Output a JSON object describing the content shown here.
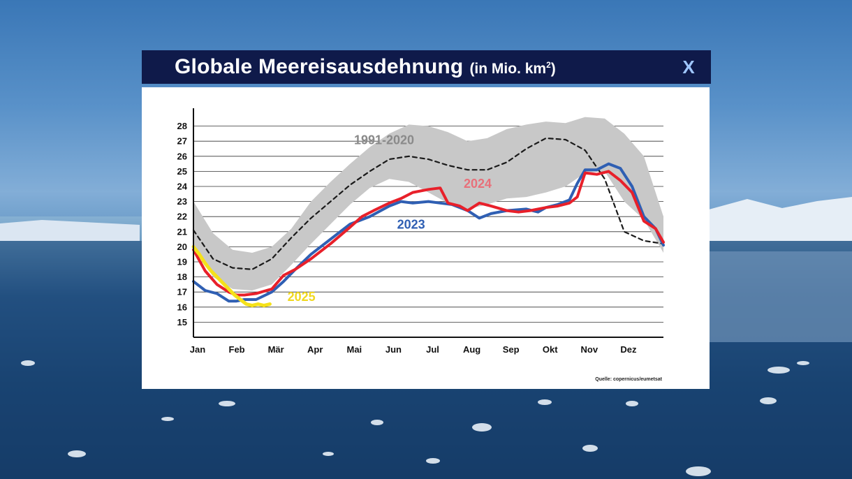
{
  "header": {
    "title": "Globale Meereisausdehnung",
    "unit_prefix": "(in Mio. km",
    "unit_sup": "2",
    "unit_suffix": ")",
    "close_label": "X"
  },
  "source": "Quelle: copernicus/eumetsat",
  "colors": {
    "header_bg": "#0f1a4a",
    "band": "#c8c8c8",
    "mean": "#1a1a1a",
    "s2023": "#2f5fb3",
    "s2024": "#e8202a",
    "s2025": "#f5e11a",
    "label2024": "#e8707a",
    "label2025": "#f0d820"
  },
  "chart_data": {
    "type": "line",
    "title": "Globale Meereisausdehnung",
    "ylabel": "",
    "xlabel": "",
    "ylim": [
      14,
      29
    ],
    "xlim": [
      0,
      12
    ],
    "yticks": [
      15,
      16,
      17,
      18,
      19,
      20,
      21,
      22,
      23,
      24,
      25,
      26,
      27,
      28
    ],
    "months": [
      "Jan",
      "Feb",
      "Mär",
      "Apr",
      "Mai",
      "Jun",
      "Jul",
      "Aug",
      "Sep",
      "Okt",
      "Nov",
      "Dez"
    ],
    "grid": true,
    "band": {
      "name": "1991-2020",
      "x": [
        0,
        0.5,
        1,
        1.5,
        2,
        2.5,
        3,
        3.5,
        4,
        4.5,
        5,
        5.5,
        6,
        6.5,
        7,
        7.5,
        8,
        8.5,
        9,
        9.5,
        10,
        10.5,
        11,
        11.5,
        12
      ],
      "upper": [
        23.0,
        20.9,
        19.8,
        19.6,
        20.0,
        21.2,
        23.0,
        24.3,
        25.5,
        26.6,
        27.5,
        28.1,
        28.0,
        27.6,
        27.0,
        27.2,
        27.8,
        28.1,
        28.3,
        28.2,
        28.6,
        28.5,
        27.5,
        26.0,
        22.0
      ],
      "lower": [
        20.2,
        18.0,
        17.2,
        17.1,
        17.5,
        18.8,
        20.2,
        21.5,
        22.8,
        23.9,
        24.5,
        24.3,
        23.6,
        22.9,
        22.5,
        22.8,
        23.2,
        23.3,
        23.6,
        24.0,
        24.9,
        25.0,
        23.0,
        21.8,
        19.6
      ]
    },
    "series": [
      {
        "name": "1991-2020",
        "style": "dashed",
        "x": [
          0,
          0.5,
          1,
          1.5,
          2,
          2.5,
          3,
          3.5,
          4,
          4.5,
          5,
          5.5,
          6,
          6.5,
          7,
          7.5,
          8,
          8.5,
          9,
          9.5,
          10,
          10.5,
          11,
          11.5,
          12
        ],
        "values": [
          21.1,
          19.2,
          18.6,
          18.5,
          19.2,
          20.6,
          21.9,
          23.0,
          24.1,
          25.0,
          25.8,
          26.0,
          25.8,
          25.4,
          25.1,
          25.1,
          25.6,
          26.5,
          27.2,
          27.1,
          26.4,
          24.5,
          21.0,
          20.4,
          20.2
        ]
      },
      {
        "name": "2023",
        "x": [
          0,
          0.3,
          0.6,
          0.9,
          1.1,
          1.3,
          1.6,
          2,
          2.3,
          2.6,
          3,
          3.5,
          4,
          4.5,
          5,
          5.3,
          5.6,
          6,
          6.3,
          6.6,
          7,
          7.3,
          7.6,
          8,
          8.5,
          8.8,
          9,
          9.3,
          9.6,
          9.8,
          10,
          10.3,
          10.6,
          10.9,
          11.2,
          11.5,
          11.8,
          12
        ],
        "values": [
          17.7,
          17.1,
          16.9,
          16.4,
          16.4,
          16.5,
          16.5,
          17.0,
          17.7,
          18.5,
          19.5,
          20.5,
          21.5,
          22.0,
          22.7,
          23.0,
          22.9,
          23.0,
          22.9,
          22.8,
          22.4,
          21.9,
          22.2,
          22.4,
          22.5,
          22.3,
          22.6,
          22.8,
          23.1,
          24.2,
          25.1,
          25.1,
          25.5,
          25.2,
          24.0,
          22.0,
          21.2,
          20.1
        ]
      },
      {
        "name": "2024",
        "x": [
          0,
          0.3,
          0.6,
          0.9,
          1.1,
          1.3,
          1.6,
          2,
          2.3,
          2.6,
          3,
          3.5,
          4,
          4.3,
          4.6,
          5,
          5.3,
          5.6,
          6,
          6.3,
          6.5,
          6.8,
          7,
          7.3,
          7.6,
          8,
          8.3,
          8.6,
          9,
          9.3,
          9.6,
          9.8,
          10,
          10.3,
          10.6,
          10.9,
          11.2,
          11.5,
          11.8,
          12
        ],
        "values": [
          19.8,
          18.4,
          17.5,
          17.0,
          16.8,
          16.8,
          16.9,
          17.2,
          18.1,
          18.5,
          19.2,
          20.2,
          21.3,
          22.0,
          22.4,
          22.9,
          23.2,
          23.6,
          23.8,
          23.9,
          22.9,
          22.7,
          22.4,
          22.9,
          22.7,
          22.4,
          22.3,
          22.4,
          22.6,
          22.7,
          22.9,
          23.3,
          24.9,
          24.8,
          25.0,
          24.4,
          23.6,
          21.7,
          21.2,
          20.3
        ]
      },
      {
        "name": "2025",
        "x": [
          0,
          0.15,
          0.3,
          0.45,
          0.6,
          0.75,
          0.9,
          1.05,
          1.2,
          1.35,
          1.5,
          1.65,
          1.8,
          1.95
        ],
        "values": [
          20.0,
          19.5,
          18.9,
          18.4,
          18.0,
          17.6,
          17.2,
          16.8,
          16.5,
          16.2,
          16.1,
          16.2,
          16.1,
          16.2
        ]
      }
    ],
    "annotations": [
      {
        "text": "1991-2020",
        "x": 4.1,
        "y": 26.8
      },
      {
        "text": "2024",
        "x": 6.9,
        "y": 23.9
      },
      {
        "text": "2023",
        "x": 5.2,
        "y": 21.2
      },
      {
        "text": "2025",
        "x": 2.4,
        "y": 16.4
      }
    ]
  }
}
